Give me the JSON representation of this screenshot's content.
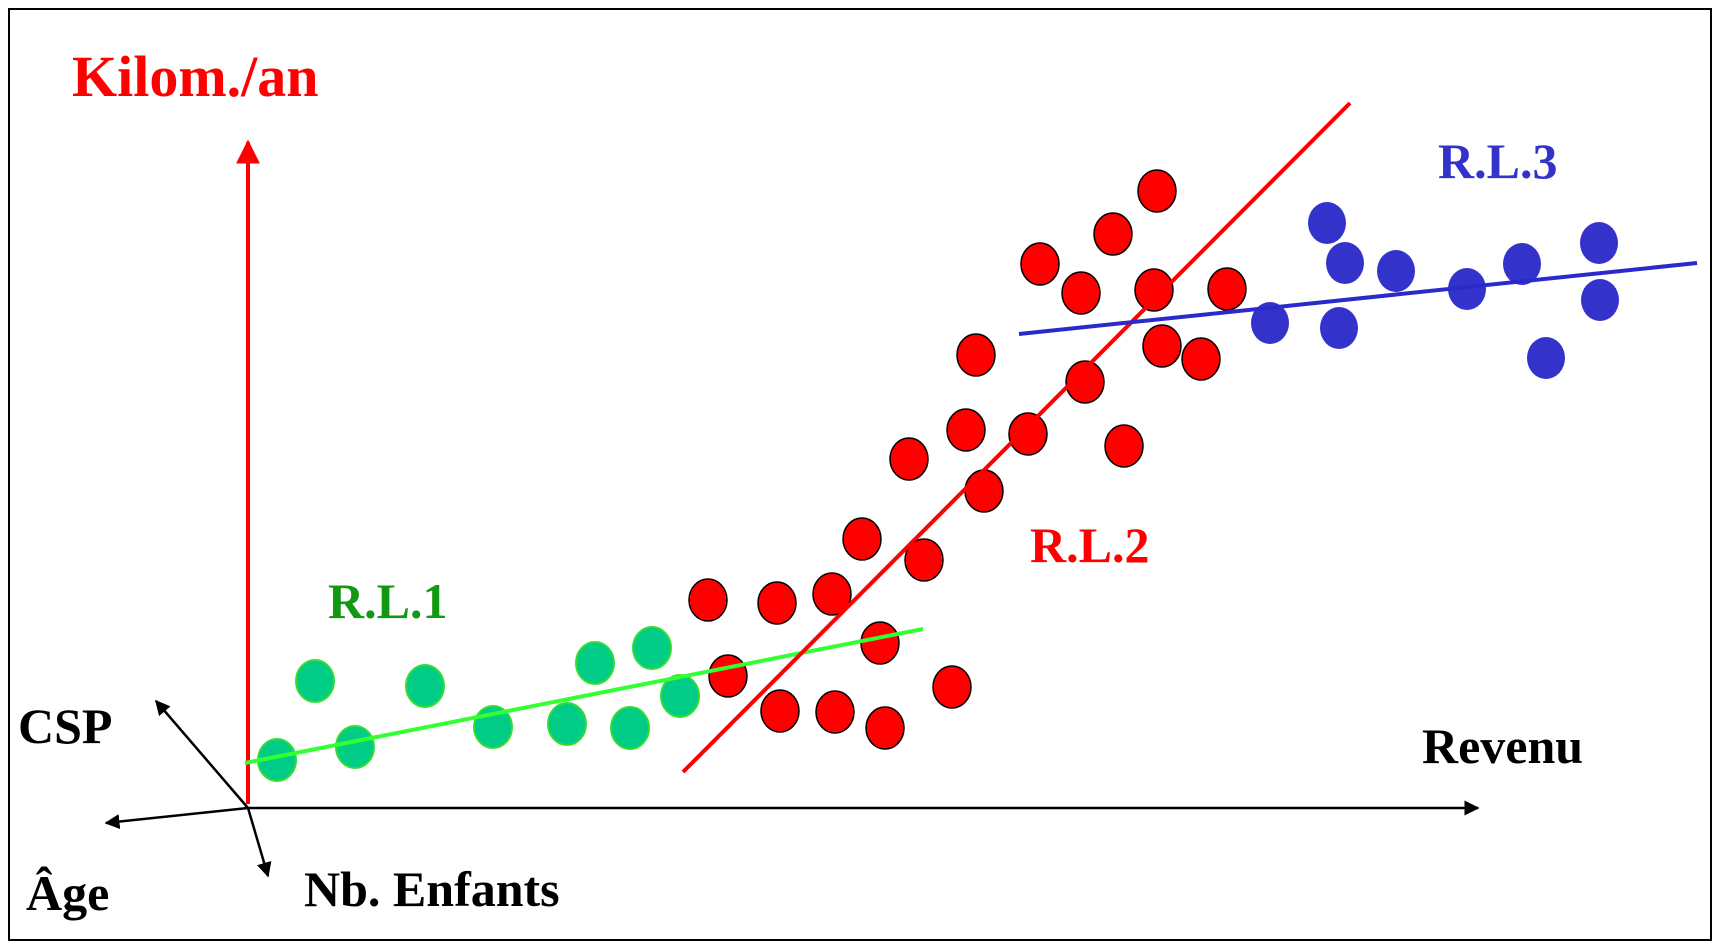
{
  "chart_data": {
    "type": "scatter",
    "axis_labels": {
      "vertical": "Kilom./an",
      "horizontal": "Revenu",
      "csp": "CSP",
      "age": "Âge",
      "children": "Nb. Enfants"
    },
    "colors": {
      "axis_vertical": "#ff0000",
      "axis_other": "#000000",
      "rl1_points": "#00cc88",
      "rl1_line": "#33ff33",
      "rl1_label": "#119911",
      "rl2": "#ff0000",
      "rl3": "#3333cc",
      "rl3_line": "#2a2acc"
    },
    "series": [
      {
        "name": "R.L.1",
        "points": [
          [
            277,
            760
          ],
          [
            315,
            681
          ],
          [
            355,
            747
          ],
          [
            425,
            686
          ],
          [
            493,
            727
          ],
          [
            567,
            724
          ],
          [
            595,
            663
          ],
          [
            630,
            728
          ],
          [
            652,
            648
          ],
          [
            680,
            696
          ]
        ],
        "line": [
          [
            245,
            763
          ],
          [
            923,
            629
          ]
        ]
      },
      {
        "name": "R.L.2",
        "points": [
          [
            708,
            600
          ],
          [
            777,
            603
          ],
          [
            832,
            594
          ],
          [
            728,
            676
          ],
          [
            780,
            711
          ],
          [
            835,
            712
          ],
          [
            880,
            643
          ],
          [
            885,
            728
          ],
          [
            952,
            687
          ],
          [
            862,
            539
          ],
          [
            924,
            560
          ],
          [
            909,
            459
          ],
          [
            966,
            430
          ],
          [
            984,
            491
          ],
          [
            976,
            355
          ],
          [
            1028,
            434
          ],
          [
            1085,
            382
          ],
          [
            1040,
            264
          ],
          [
            1081,
            293
          ],
          [
            1113,
            234
          ],
          [
            1157,
            191
          ],
          [
            1154,
            290
          ],
          [
            1162,
            346
          ],
          [
            1201,
            359
          ],
          [
            1227,
            289
          ],
          [
            1124,
            446
          ]
        ],
        "line": [
          [
            683,
            772
          ],
          [
            1350,
            103
          ]
        ]
      },
      {
        "name": "R.L.3",
        "points": [
          [
            1327,
            223
          ],
          [
            1345,
            263
          ],
          [
            1396,
            271
          ],
          [
            1270,
            323
          ],
          [
            1339,
            328
          ],
          [
            1467,
            289
          ],
          [
            1522,
            264
          ],
          [
            1599,
            243
          ],
          [
            1600,
            300
          ],
          [
            1546,
            358
          ]
        ],
        "line": [
          [
            1019,
            334
          ],
          [
            1697,
            263
          ]
        ]
      }
    ]
  }
}
